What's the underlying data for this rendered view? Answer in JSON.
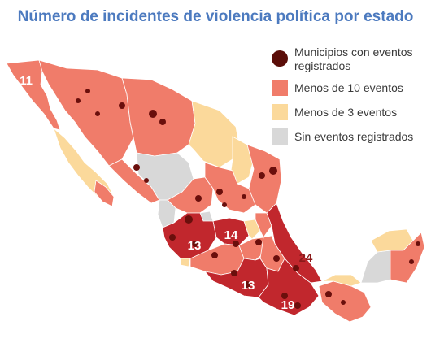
{
  "title": "Número de incidentes de violencia política por estado",
  "legend": {
    "items": [
      {
        "label_line1": "Municipios con eventos",
        "label_line2": "registrados",
        "color": "#5a0d08",
        "shape": "circle"
      },
      {
        "label": "Menos de 10 eventos",
        "color": "#f07c6a",
        "shape": "square"
      },
      {
        "label": "Menos de 3 eventos",
        "color": "#fbd99b",
        "shape": "square"
      },
      {
        "label": "Sin eventos registrados",
        "color": "#d8d8d8",
        "shape": "square"
      }
    ]
  },
  "categories": {
    "ten_plus": "#c1272d",
    "under_ten": "#f07c6a",
    "under_three": "#fbd99b",
    "none": "#d8d8d8",
    "municipality": "#6a0f0c"
  },
  "state_counts": {
    "baja_california": "11",
    "jalisco": "13",
    "guanajuato": "14",
    "veracruz": "24",
    "guerrero": "13",
    "oaxaca": "19"
  }
}
